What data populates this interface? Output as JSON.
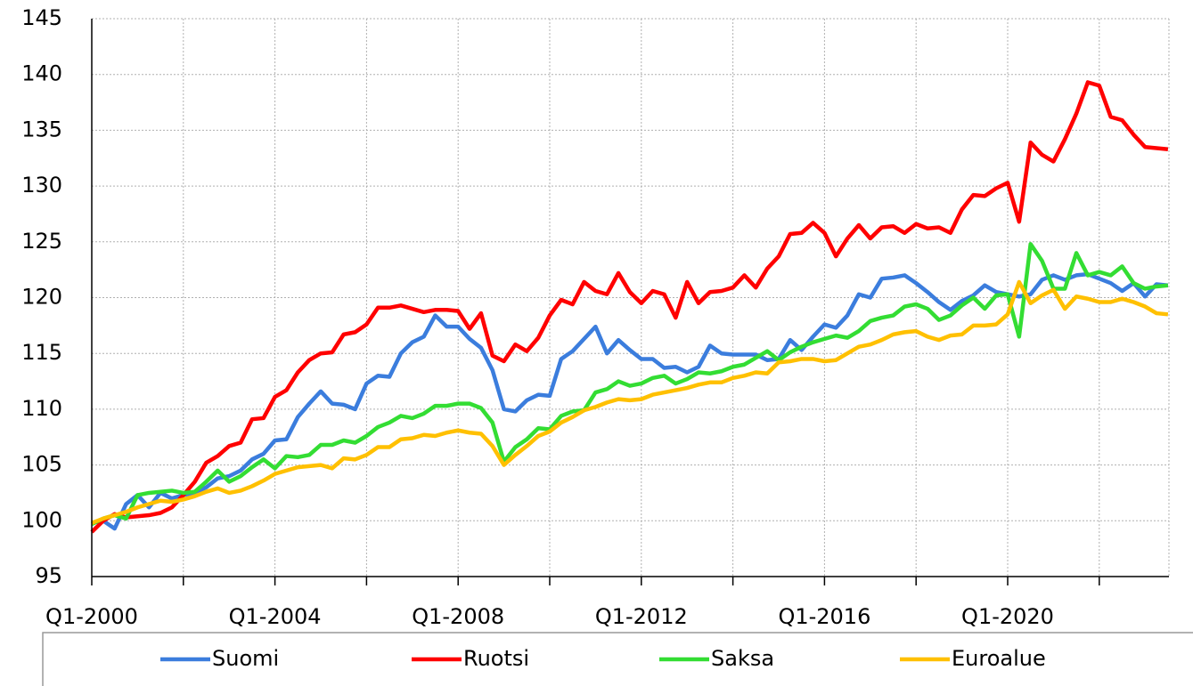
{
  "chart_data": {
    "type": "line",
    "categories": [
      "Q1-2000",
      null,
      null,
      null,
      null,
      null,
      null,
      null,
      null,
      null,
      null,
      null,
      null,
      null,
      null,
      null,
      "Q1-2004",
      null,
      null,
      null,
      null,
      null,
      null,
      null,
      null,
      null,
      null,
      null,
      null,
      null,
      null,
      null,
      "Q1-2008",
      null,
      null,
      null,
      null,
      null,
      null,
      null,
      null,
      null,
      null,
      null,
      null,
      null,
      null,
      null,
      "Q1-2012",
      null,
      null,
      null,
      null,
      null,
      null,
      null,
      null,
      null,
      null,
      null,
      null,
      null,
      null,
      null,
      "Q1-2016",
      null,
      null,
      null,
      null,
      null,
      null,
      null,
      null,
      null,
      null,
      null,
      null,
      null,
      null,
      null,
      "Q1-2020",
      null,
      null,
      null,
      null,
      null,
      null,
      null,
      null,
      null,
      null,
      null,
      null,
      null,
      null
    ],
    "series": [
      {
        "name": "Suomi",
        "color": "#3b7ddd",
        "values": [
          99.8,
          100.0,
          99.3,
          101.5,
          102.3,
          101.2,
          102.5,
          102.0,
          102.3,
          102.5,
          103.0,
          103.8,
          104.0,
          104.5,
          105.5,
          106.0,
          107.2,
          107.3,
          109.3,
          110.5,
          111.6,
          110.5,
          110.4,
          110.0,
          112.3,
          113.0,
          112.9,
          115.0,
          116.0,
          116.5,
          118.4,
          117.4,
          117.4,
          116.3,
          115.5,
          113.5,
          110.0,
          109.8,
          110.8,
          111.3,
          111.2,
          114.5,
          115.2,
          116.3,
          117.4,
          115.0,
          116.2,
          115.3,
          114.5,
          114.5,
          113.7,
          113.8,
          113.3,
          113.8,
          115.7,
          115.0,
          114.9,
          114.9,
          114.9,
          114.4,
          114.5,
          116.2,
          115.3,
          116.5,
          117.6,
          117.3,
          118.4,
          120.3,
          120.0,
          121.7,
          121.8,
          122.0,
          121.3,
          120.5,
          119.6,
          118.9,
          119.7,
          120.2,
          121.1,
          120.5,
          120.3,
          120.1,
          120.3,
          121.6,
          122.0,
          121.6,
          122.0,
          122.1,
          121.7,
          121.3,
          120.6,
          121.3,
          120.1,
          121.2,
          121.1
        ]
      },
      {
        "name": "Ruotsi",
        "color": "#ff0000",
        "values": [
          99.0,
          100.0,
          100.6,
          100.3,
          100.4,
          100.5,
          100.7,
          101.2,
          102.3,
          103.5,
          105.2,
          105.8,
          106.7,
          107.0,
          109.1,
          109.2,
          111.1,
          111.7,
          113.3,
          114.4,
          115.0,
          115.1,
          116.7,
          116.9,
          117.6,
          119.1,
          119.1,
          119.3,
          119.0,
          118.7,
          118.9,
          118.9,
          118.8,
          117.2,
          118.6,
          114.8,
          114.3,
          115.8,
          115.2,
          116.4,
          118.4,
          119.8,
          119.4,
          121.4,
          120.6,
          120.3,
          122.2,
          120.5,
          119.5,
          120.6,
          120.3,
          118.2,
          121.4,
          119.5,
          120.5,
          120.6,
          120.9,
          122.0,
          120.9,
          122.6,
          123.7,
          125.7,
          125.8,
          126.7,
          125.8,
          123.7,
          125.3,
          126.5,
          125.3,
          126.3,
          126.4,
          125.8,
          126.6,
          126.2,
          126.3,
          125.8,
          127.9,
          129.2,
          129.1,
          129.8,
          130.3,
          126.8,
          133.9,
          132.8,
          132.2,
          134.2,
          136.5,
          139.3,
          139.0,
          136.2,
          135.9,
          134.6,
          133.5,
          133.4,
          133.3
        ]
      },
      {
        "name": "Saksa",
        "color": "#33dd33",
        "values": [
          99.7,
          100.2,
          100.5,
          100.2,
          102.3,
          102.5,
          102.6,
          102.7,
          102.5,
          102.6,
          103.5,
          104.5,
          103.5,
          104.0,
          104.8,
          105.5,
          104.7,
          105.8,
          105.7,
          105.9,
          106.8,
          106.8,
          107.2,
          107.0,
          107.6,
          108.4,
          108.8,
          109.4,
          109.2,
          109.6,
          110.3,
          110.3,
          110.5,
          110.5,
          110.1,
          108.8,
          105.3,
          106.6,
          107.3,
          108.3,
          108.2,
          109.4,
          109.8,
          109.9,
          111.5,
          111.8,
          112.5,
          112.1,
          112.3,
          112.8,
          113.0,
          112.3,
          112.7,
          113.3,
          113.2,
          113.4,
          113.8,
          114.0,
          114.6,
          115.2,
          114.4,
          115.1,
          115.6,
          116.0,
          116.3,
          116.6,
          116.4,
          117.0,
          117.9,
          118.2,
          118.4,
          119.2,
          119.4,
          119.0,
          118.0,
          118.4,
          119.3,
          120.0,
          119.0,
          120.2,
          120.3,
          116.5,
          124.8,
          123.3,
          120.8,
          120.8,
          124.0,
          122.0,
          122.3,
          122.0,
          122.8,
          121.3,
          120.8,
          121.0,
          121.1
        ]
      },
      {
        "name": "Euroalue",
        "color": "#ffc000",
        "values": [
          99.8,
          100.2,
          100.5,
          100.8,
          101.2,
          101.5,
          101.8,
          101.7,
          101.9,
          102.2,
          102.6,
          102.9,
          102.5,
          102.7,
          103.1,
          103.6,
          104.2,
          104.5,
          104.8,
          104.9,
          105.0,
          104.7,
          105.6,
          105.5,
          105.9,
          106.6,
          106.6,
          107.3,
          107.4,
          107.7,
          107.6,
          107.9,
          108.1,
          107.9,
          107.8,
          106.7,
          105.0,
          105.9,
          106.7,
          107.6,
          108.0,
          108.8,
          109.3,
          109.9,
          110.2,
          110.6,
          110.9,
          110.8,
          110.9,
          111.3,
          111.5,
          111.7,
          111.9,
          112.2,
          112.4,
          112.4,
          112.8,
          113.0,
          113.3,
          113.2,
          114.2,
          114.3,
          114.5,
          114.5,
          114.3,
          114.4,
          115.0,
          115.6,
          115.8,
          116.2,
          116.7,
          116.9,
          117.0,
          116.5,
          116.2,
          116.6,
          116.7,
          117.5,
          117.5,
          117.6,
          118.5,
          121.4,
          119.5,
          120.2,
          120.7,
          119.0,
          120.1,
          119.9,
          119.6,
          119.6,
          119.9,
          119.6,
          119.2,
          118.6,
          118.5
        ]
      }
    ],
    "ylim": [
      95,
      145
    ],
    "yticks": [
      95,
      100,
      105,
      110,
      115,
      120,
      125,
      130,
      135,
      140,
      145
    ],
    "grid": true,
    "legend": "bottom"
  }
}
